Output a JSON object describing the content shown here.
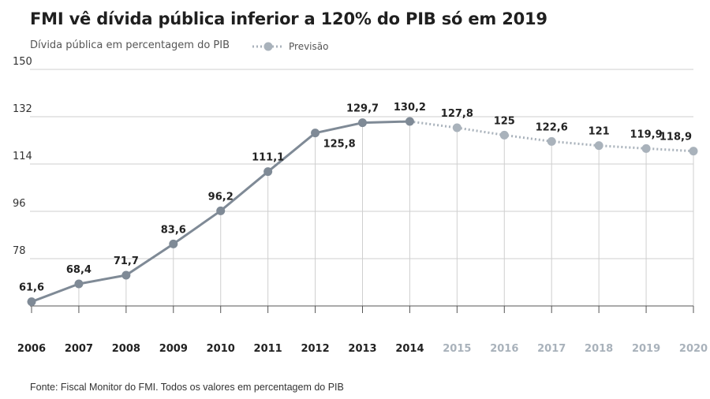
{
  "title": "FMI vê dívida pública inferior a 120% do PIB só em 2019",
  "subtitle": "Dívida pública em percentagem do PIB",
  "source": "Fonte: Fiscal Monitor do FMI. Todos os valores em percentagem do PIB",
  "colors": {
    "actual": "#7f8a96",
    "forecast": "#a9b2bb",
    "grid": "#cfcfcf",
    "axis": "#222222"
  },
  "chart_data": {
    "type": "line",
    "x": [
      "2006",
      "2007",
      "2008",
      "2009",
      "2010",
      "2011",
      "2012",
      "2013",
      "2014",
      "2015",
      "2016",
      "2017",
      "2018",
      "2019",
      "2020"
    ],
    "values": [
      61.6,
      68.4,
      71.7,
      83.6,
      96.2,
      111.1,
      125.8,
      129.7,
      130.2,
      127.8,
      125,
      122.6,
      121,
      119.9,
      118.9
    ],
    "labels": [
      "61,6",
      "68,4",
      "71,7",
      "83,6",
      "96,2",
      "111,1",
      "125,8",
      "129,7",
      "130,2",
      "127,8",
      "125",
      "122,6",
      "121",
      "119,9",
      "118,9"
    ],
    "forecast_start_index": 9,
    "legend": [
      {
        "name": "Previsão",
        "style": "dotted"
      }
    ],
    "yticks": [
      150,
      132,
      114,
      96,
      78
    ],
    "ylim": [
      60,
      150
    ],
    "grid": true,
    "legend_position": "top"
  }
}
